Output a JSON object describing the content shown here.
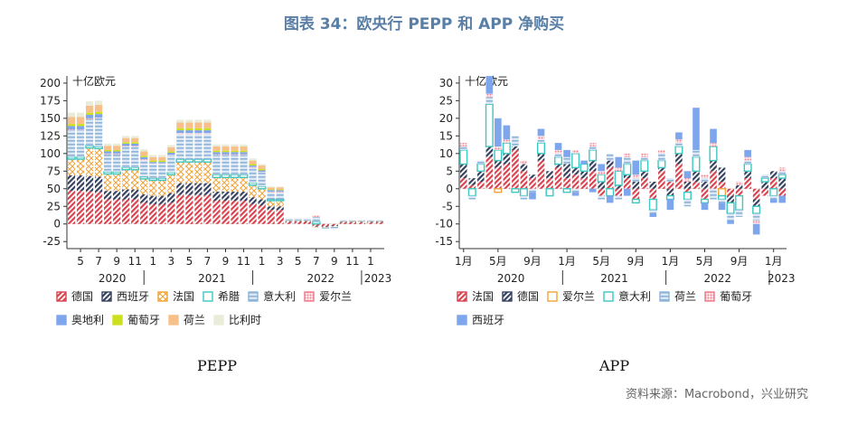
{
  "figure_title": "图表 34：欧央行 PEPP 和 APP 净购买",
  "source": "资料来源：Macrobond，兴业研究",
  "chart_data": [
    {
      "type": "bar",
      "stacked": true,
      "caption": "PEPP",
      "unit": "十亿欧元",
      "x_tick_labels": [
        "5",
        "7",
        "9",
        "11",
        "1",
        "3",
        "5",
        "7",
        "9",
        "11",
        "1",
        "3",
        "5",
        "7",
        "9",
        "11",
        "1"
      ],
      "x_year_labels": [
        "2020",
        "2021",
        "2022",
        "2023"
      ],
      "y_ticks": [
        "200",
        "175",
        "150",
        "125",
        "100",
        "75",
        "50",
        "25",
        "0",
        "-25"
      ],
      "ylim": [
        -35,
        205
      ],
      "grid": false,
      "legend_position": "bottom",
      "categories": [
        "2020-04",
        "2020-05",
        "2020-06",
        "2020-07",
        "2020-08",
        "2020-09",
        "2020-10",
        "2020-11",
        "2020-12",
        "2021-01",
        "2021-02",
        "2021-03",
        "2021-04",
        "2021-05",
        "2021-06",
        "2021-07",
        "2021-08",
        "2021-09",
        "2021-10",
        "2021-11",
        "2021-12",
        "2022-01",
        "2022-02",
        "2022-03",
        "2022-04",
        "2022-05",
        "2022-06",
        "2022-07",
        "2022-08",
        "2022-09",
        "2022-10",
        "2022-11",
        "2022-12",
        "2023-01",
        "2023-02"
      ],
      "series": [
        {
          "name": "德国",
          "color": "#d9434f",
          "pattern": "hatch",
          "values": [
            47,
            47,
            46,
            45,
            35,
            35,
            35,
            35,
            30,
            28,
            28,
            30,
            41,
            41,
            41,
            41,
            33,
            33,
            33,
            33,
            28,
            26,
            20,
            20,
            3,
            3,
            3,
            -3,
            -3,
            -2,
            2,
            2,
            2,
            2,
            2
          ]
        },
        {
          "name": "西班牙",
          "color": "#36415f",
          "pattern": "hatch",
          "values": [
            22,
            22,
            22,
            22,
            12,
            12,
            14,
            14,
            12,
            12,
            12,
            14,
            17,
            17,
            17,
            17,
            13,
            13,
            13,
            13,
            10,
            9,
            5,
            5,
            1,
            1,
            1,
            -1,
            -1,
            -1,
            1,
            1,
            1,
            1,
            1
          ]
        },
        {
          "name": "法国",
          "color": "#f2a33a",
          "pattern": "cross",
          "values": [
            23,
            23,
            40,
            40,
            24,
            24,
            28,
            28,
            22,
            22,
            22,
            26,
            30,
            30,
            30,
            30,
            20,
            20,
            20,
            20,
            17,
            15,
            8,
            8,
            1,
            1,
            1,
            -1,
            -1,
            -1,
            1,
            1,
            1,
            1,
            1
          ]
        },
        {
          "name": "希腊",
          "color": "#3cc8c0",
          "pattern": "outline",
          "values": [
            3,
            3,
            3,
            3,
            3,
            3,
            3,
            3,
            3,
            3,
            3,
            3,
            4,
            4,
            4,
            4,
            4,
            4,
            4,
            4,
            3,
            3,
            2,
            2,
            0,
            0,
            0,
            3,
            0,
            0,
            0,
            0,
            0,
            0,
            0
          ]
        },
        {
          "name": "意大利",
          "color": "#8fb4da",
          "pattern": "dash",
          "values": [
            38,
            38,
            38,
            40,
            25,
            25,
            30,
            30,
            24,
            20,
            20,
            24,
            35,
            35,
            35,
            35,
            28,
            28,
            28,
            28,
            22,
            20,
            10,
            10,
            3,
            3,
            3,
            7,
            -2,
            -2,
            1,
            1,
            1,
            1,
            1
          ]
        },
        {
          "name": "爱尔兰",
          "color": "#f07a8c",
          "pattern": "dots",
          "values": [
            1,
            1,
            1,
            1,
            1,
            1,
            1,
            1,
            1,
            1,
            1,
            1,
            2,
            2,
            2,
            2,
            1,
            1,
            1,
            1,
            1,
            1,
            1,
            1,
            0,
            0,
            0,
            2,
            0,
            0,
            0,
            0,
            0,
            0,
            0
          ]
        },
        {
          "name": "奥地利",
          "color": "#7ea6ec",
          "pattern": "solid",
          "values": [
            5,
            5,
            5,
            5,
            3,
            3,
            3,
            3,
            3,
            2,
            2,
            3,
            4,
            4,
            4,
            4,
            3,
            3,
            3,
            3,
            2,
            2,
            2,
            2,
            0,
            0,
            0,
            0,
            0,
            0,
            0,
            0,
            0,
            0,
            0
          ]
        },
        {
          "name": "葡萄牙",
          "color": "#cde020",
          "pattern": "solid",
          "values": [
            3,
            3,
            3,
            3,
            2,
            2,
            2,
            2,
            2,
            2,
            2,
            2,
            3,
            3,
            3,
            3,
            2,
            2,
            2,
            2,
            2,
            2,
            1,
            1,
            0,
            0,
            0,
            0,
            0,
            0,
            0,
            0,
            0,
            0,
            0
          ]
        },
        {
          "name": "荷兰",
          "color": "#f7c08a",
          "pattern": "solid",
          "values": [
            10,
            10,
            10,
            10,
            6,
            6,
            6,
            6,
            6,
            5,
            5,
            6,
            8,
            8,
            8,
            8,
            6,
            6,
            6,
            6,
            5,
            5,
            3,
            3,
            0,
            0,
            0,
            0,
            0,
            0,
            0,
            0,
            0,
            0,
            0
          ]
        },
        {
          "name": "比利时",
          "color": "#e8ecd8",
          "pattern": "solid",
          "values": [
            6,
            6,
            6,
            6,
            3,
            3,
            3,
            3,
            3,
            3,
            3,
            3,
            4,
            4,
            4,
            4,
            3,
            3,
            3,
            3,
            3,
            2,
            1,
            1,
            0,
            0,
            0,
            0,
            0,
            0,
            0,
            0,
            0,
            0,
            0
          ]
        }
      ]
    },
    {
      "type": "bar",
      "stacked": true,
      "caption": "APP",
      "unit": "十亿欧元",
      "x_tick_labels": [
        "1月",
        "5月",
        "9月",
        "1月",
        "5月",
        "9月",
        "1月",
        "5月",
        "9月",
        "1月"
      ],
      "x_year_labels": [
        "2020",
        "2021",
        "2022",
        "2023"
      ],
      "y_ticks": [
        "30",
        "25",
        "20",
        "15",
        "10",
        "5",
        "0",
        "-5",
        "-10",
        "-15"
      ],
      "ylim": [
        -17,
        31
      ],
      "grid": false,
      "legend_position": "bottom",
      "categories": [
        "2020-01",
        "2020-02",
        "2020-03",
        "2020-04",
        "2020-05",
        "2020-06",
        "2020-07",
        "2020-08",
        "2020-09",
        "2020-10",
        "2020-11",
        "2020-12",
        "2021-01",
        "2021-02",
        "2021-03",
        "2021-04",
        "2021-05",
        "2021-06",
        "2021-07",
        "2021-08",
        "2021-09",
        "2021-10",
        "2021-11",
        "2021-12",
        "2022-01",
        "2022-02",
        "2022-03",
        "2022-04",
        "2022-05",
        "2022-06",
        "2022-07",
        "2022-08",
        "2022-09",
        "2022-10",
        "2022-11",
        "2022-12",
        "2023-01",
        "2023-02"
      ],
      "series": [
        {
          "name": "法国",
          "color": "#d9434f",
          "pattern": "hatch",
          "values": [
            3,
            1,
            2,
            9,
            6,
            7,
            11,
            5,
            3,
            8,
            3,
            6,
            3,
            4,
            3,
            5,
            -2,
            6,
            -2,
            3,
            -3,
            3,
            -3,
            5,
            2,
            7,
            -1,
            2,
            -3,
            5,
            2,
            -2,
            -2,
            3,
            -3,
            -2,
            3,
            -2
          ]
        },
        {
          "name": "德国",
          "color": "#36415f",
          "pattern": "hatch",
          "values": [
            4,
            2,
            3,
            3,
            2,
            3,
            1,
            2,
            1,
            2,
            2,
            1,
            4,
            2,
            2,
            3,
            2,
            2,
            1,
            1,
            2,
            2,
            2,
            1,
            -2,
            3,
            2,
            3,
            2,
            3,
            4,
            -2,
            1,
            2,
            -2,
            2,
            2,
            3
          ]
        },
        {
          "name": "爱尔兰",
          "color": "#f2a33a",
          "pattern": "outline",
          "values": [
            0,
            0,
            0,
            0,
            -1,
            0,
            0,
            0,
            0,
            0,
            0,
            0,
            0,
            0,
            0,
            0,
            0,
            0,
            0,
            0,
            0,
            0,
            0,
            0,
            0,
            0,
            0,
            0,
            0,
            0,
            -2,
            0,
            0,
            0,
            0,
            0,
            0,
            0
          ]
        },
        {
          "name": "意大利",
          "color": "#3cc8c0",
          "pattern": "outline",
          "values": [
            4,
            -2,
            2,
            12,
            3,
            3,
            -1,
            -2,
            0,
            3,
            -2,
            2,
            -1,
            4,
            2,
            3,
            2,
            -2,
            4,
            3,
            -1,
            3,
            -3,
            2,
            -1,
            2,
            -2,
            4,
            -1,
            4,
            -1,
            -3,
            -4,
            2,
            -2,
            1,
            -2,
            1
          ]
        },
        {
          "name": "荷兰",
          "color": "#8fb4da",
          "pattern": "dash",
          "values": [
            1,
            -1,
            1,
            2,
            0,
            0,
            3,
            -1,
            -1,
            1,
            0,
            1,
            2,
            -1,
            0,
            1,
            -1,
            2,
            -1,
            2,
            1,
            1,
            -1,
            2,
            1,
            1,
            -2,
            2,
            1,
            -3,
            -1,
            -2,
            -2,
            1,
            -2,
            1,
            -1,
            1
          ]
        },
        {
          "name": "葡萄牙",
          "color": "#f07a8c",
          "pattern": "dots",
          "values": [
            1,
            0,
            0,
            1,
            1,
            1,
            0,
            1,
            0,
            1,
            0,
            1,
            0,
            1,
            0,
            1,
            1,
            0,
            1,
            1,
            1,
            1,
            0,
            1,
            0,
            1,
            1,
            0,
            1,
            1,
            0,
            0,
            1,
            1,
            -1,
            0,
            0,
            1
          ]
        },
        {
          "name": "西班牙",
          "color": "#7ea6ec",
          "pattern": "solid",
          "values": [
            0,
            0,
            0,
            5,
            8,
            4,
            0,
            0,
            -2,
            2,
            0,
            2,
            2,
            -1,
            1,
            -1,
            2,
            -2,
            3,
            -2,
            4,
            0,
            -1,
            0,
            -3,
            2,
            2,
            12,
            -2,
            4,
            -2,
            -1,
            0,
            2,
            -3,
            0,
            -1,
            -2
          ]
        }
      ]
    }
  ]
}
